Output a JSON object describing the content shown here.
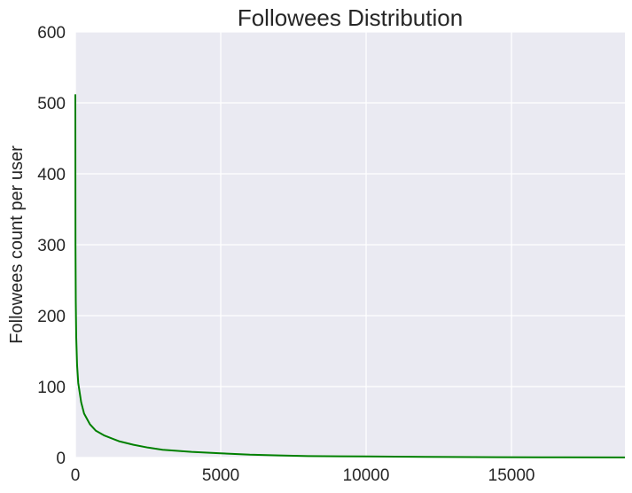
{
  "chart_data": {
    "type": "line",
    "title": "Followees Distribution",
    "xlabel": "",
    "ylabel": "Followees count per user",
    "xlim": [
      0,
      18900
    ],
    "ylim": [
      0,
      600
    ],
    "xticks": [
      0,
      5000,
      10000,
      15000
    ],
    "yticks": [
      0,
      100,
      200,
      300,
      400,
      500,
      600
    ],
    "grid": true,
    "background_color": "#EAEAF2",
    "grid_color": "#FFFFFF",
    "text_color": "#262626",
    "series": [
      {
        "color": "#008000",
        "points": [
          [
            0,
            512
          ],
          [
            5,
            300
          ],
          [
            15,
            220
          ],
          [
            30,
            170
          ],
          [
            60,
            130
          ],
          [
            100,
            105
          ],
          [
            200,
            78
          ],
          [
            300,
            62
          ],
          [
            500,
            47
          ],
          [
            700,
            38
          ],
          [
            1000,
            31
          ],
          [
            1500,
            23
          ],
          [
            2000,
            18
          ],
          [
            2500,
            14
          ],
          [
            3000,
            11
          ],
          [
            4000,
            8
          ],
          [
            5000,
            6
          ],
          [
            6000,
            4
          ],
          [
            7000,
            3
          ],
          [
            8000,
            2
          ],
          [
            10000,
            1.5
          ],
          [
            12000,
            1
          ],
          [
            14500,
            0.5
          ],
          [
            16000,
            0.3
          ],
          [
            18900,
            0.2
          ]
        ]
      }
    ]
  }
}
